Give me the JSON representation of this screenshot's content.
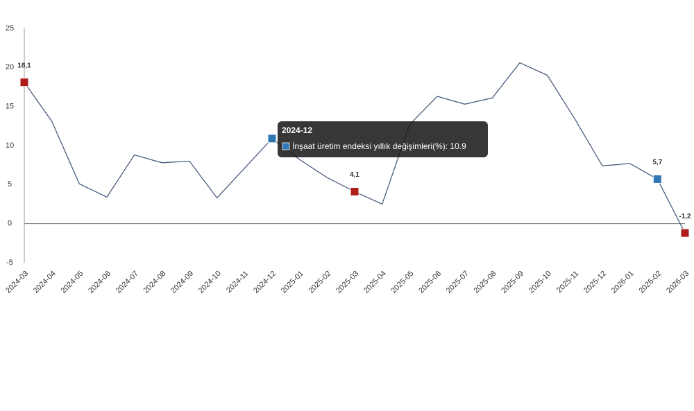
{
  "chart_data": {
    "type": "line",
    "categories": [
      "2024-03",
      "2024-04",
      "2024-05",
      "2024-06",
      "2024-07",
      "2024-08",
      "2024-09",
      "2024-10",
      "2024-11",
      "2024-12",
      "2025-01",
      "2025-02",
      "2025-03",
      "2025-04",
      "2025-05",
      "2025-06",
      "2025-07",
      "2025-08",
      "2025-09",
      "2025-10",
      "2025-11",
      "2025-12",
      "2026-01",
      "2026-02",
      "2026-03"
    ],
    "series": [
      {
        "name": "İnşaat üretim endeksi yıllık değişimleri(%)",
        "color": "#4a5d7e",
        "values": [
          18.1,
          13.1,
          5.1,
          3.4,
          8.8,
          7.8,
          8.0,
          3.3,
          7.1,
          10.9,
          8.2,
          5.9,
          4.1,
          2.5,
          12.7,
          16.3,
          15.3,
          16.1,
          20.6,
          19.0,
          13.4,
          7.4,
          7.7,
          5.7,
          -1.2
        ],
        "value_labels": [
          "18,1",
          null,
          null,
          null,
          null,
          null,
          null,
          null,
          null,
          null,
          null,
          null,
          "4,1",
          null,
          null,
          null,
          null,
          null,
          null,
          null,
          null,
          null,
          null,
          "5,7",
          "-1,2"
        ],
        "marker_colors": [
          "#b01c1c",
          null,
          null,
          null,
          null,
          null,
          null,
          null,
          null,
          "#2f77b5",
          null,
          null,
          "#b01c1c",
          null,
          null,
          null,
          null,
          null,
          null,
          null,
          null,
          null,
          null,
          "#2f77b5",
          "#b01c1c"
        ]
      }
    ],
    "ylim": [
      -5,
      25
    ],
    "yticks": [
      -5,
      0,
      5,
      10,
      15,
      20,
      25
    ],
    "tooltip": {
      "title": "2024-12",
      "text": "İnşaat üretim endeksi yıllık değişimleri(%): 10.9",
      "color": "#2f77b5"
    }
  }
}
